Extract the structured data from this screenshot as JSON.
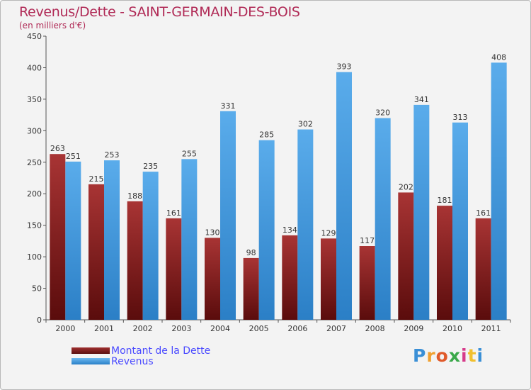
{
  "chart_data": {
    "type": "bar",
    "title": "Revenus/Dette - SAINT-GERMAIN-DES-BOIS",
    "subtitle": "(en milliers d'€)",
    "categories": [
      "2000",
      "2001",
      "2002",
      "2003",
      "2004",
      "2005",
      "2006",
      "2007",
      "2008",
      "2009",
      "2010",
      "2011"
    ],
    "series": [
      {
        "name": "Montant de la Dette",
        "values": [
          263,
          215,
          188,
          161,
          130,
          98,
          134,
          129,
          117,
          202,
          181,
          161
        ],
        "color": "#7a1f1f"
      },
      {
        "name": "Revenus",
        "values": [
          251,
          253,
          235,
          255,
          331,
          285,
          302,
          393,
          320,
          341,
          313,
          408
        ],
        "color": "#4a9fe0"
      }
    ],
    "ylim": [
      0,
      450
    ],
    "yticks": [
      0,
      50,
      100,
      150,
      200,
      250,
      300,
      350,
      400,
      450
    ],
    "grid": false,
    "legend_position": "bottom-left"
  },
  "logo": {
    "text": "Proxiti",
    "colors": [
      "#3a8fd6",
      "#f0a030",
      "#e05a2a",
      "#3aa84a",
      "#d63a8a",
      "#f0c030",
      "#3a8fd6"
    ]
  }
}
